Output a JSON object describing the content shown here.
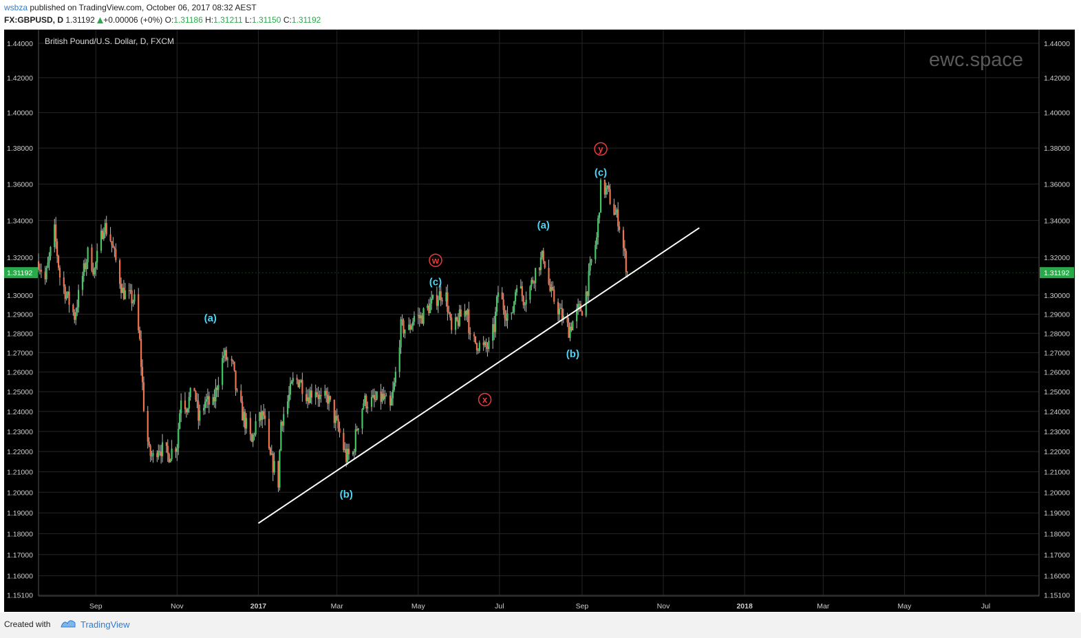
{
  "header": {
    "publisher": "wsbza",
    "published_text": "published on TradingView.com, October 06, 2017 08:32 AEST",
    "symbol": "FX:GBPUSD, D",
    "last": "1.31192",
    "change": "+0.00006 (+0%)",
    "open_label": "O:",
    "open": "1.31186",
    "high_label": "H:",
    "high": "1.31211",
    "low_label": "L:",
    "low": "1.31150",
    "close_label": "C:",
    "close": "1.31192"
  },
  "footer": {
    "created_with": "Created with",
    "brand": "TradingView"
  },
  "colors": {
    "up": "#44c767",
    "down": "#f0734e",
    "background": "#000000",
    "grid": "#262626",
    "wave_cyan": "#4fd3f5",
    "wave_red": "#ee3b3b",
    "trendline": "#ffffff",
    "price_badge": "#2aa94a"
  },
  "chart_data": {
    "type": "candlestick",
    "title": "British Pound/U.S. Dollar, D, FXCM",
    "watermark": "ewc.space",
    "scale": "log",
    "y_ticks": [
      1.44,
      1.42,
      1.4,
      1.38,
      1.36,
      1.34,
      1.32,
      1.3,
      1.29,
      1.28,
      1.27,
      1.26,
      1.25,
      1.24,
      1.23,
      1.22,
      1.21,
      1.2,
      1.19,
      1.18,
      1.17,
      1.16,
      1.151
    ],
    "y_tick_labels": [
      "1.44000",
      "1.42000",
      "1.40000",
      "1.38000",
      "1.36000",
      "1.34000",
      "1.32000",
      "1.30000",
      "1.29000",
      "1.28000",
      "1.27000",
      "1.26000",
      "1.25000",
      "1.24000",
      "1.23000",
      "1.22000",
      "1.21000",
      "1.20000",
      "1.19000",
      "1.18000",
      "1.17000",
      "1.16000",
      "1.15100"
    ],
    "ylim": [
      1.1505,
      1.448
    ],
    "x_start": "2016-07-20",
    "x_end": "2018-08-10",
    "x_ticks": [
      {
        "date": "2016-09-01",
        "label": "Sep",
        "bold": false
      },
      {
        "date": "2016-11-01",
        "label": "Nov",
        "bold": false
      },
      {
        "date": "2017-01-01",
        "label": "2017",
        "bold": true
      },
      {
        "date": "2017-03-01",
        "label": "Mar",
        "bold": false
      },
      {
        "date": "2017-05-01",
        "label": "May",
        "bold": false
      },
      {
        "date": "2017-07-01",
        "label": "Jul",
        "bold": false
      },
      {
        "date": "2017-09-01",
        "label": "Sep",
        "bold": false
      },
      {
        "date": "2017-11-01",
        "label": "Nov",
        "bold": false
      },
      {
        "date": "2018-01-01",
        "label": "2018",
        "bold": true
      },
      {
        "date": "2018-03-01",
        "label": "Mar",
        "bold": false
      },
      {
        "date": "2018-05-01",
        "label": "May",
        "bold": false
      },
      {
        "date": "2018-07-01",
        "label": "Jul",
        "bold": false
      }
    ],
    "last_price": 1.31192,
    "last_price_label": "1.31192",
    "price_path": [
      [
        "2016-07-20",
        1.318
      ],
      [
        "2016-07-25",
        1.308
      ],
      [
        "2016-08-01",
        1.334
      ],
      [
        "2016-08-05",
        1.31
      ],
      [
        "2016-08-10",
        1.3
      ],
      [
        "2016-08-16",
        1.289
      ],
      [
        "2016-08-22",
        1.31
      ],
      [
        "2016-08-26",
        1.322
      ],
      [
        "2016-08-31",
        1.313
      ],
      [
        "2016-09-07",
        1.338
      ],
      [
        "2016-09-12",
        1.33
      ],
      [
        "2016-09-16",
        1.318
      ],
      [
        "2016-09-21",
        1.302
      ],
      [
        "2016-09-26",
        1.299
      ],
      [
        "2016-09-30",
        1.297
      ],
      [
        "2016-10-04",
        1.275
      ],
      [
        "2016-10-07",
        1.243
      ],
      [
        "2016-10-11",
        1.219
      ],
      [
        "2016-10-14",
        1.217
      ],
      [
        "2016-10-18",
        1.223
      ],
      [
        "2016-10-25",
        1.218
      ],
      [
        "2016-11-01",
        1.224
      ],
      [
        "2016-11-04",
        1.248
      ],
      [
        "2016-11-08",
        1.243
      ],
      [
        "2016-11-14",
        1.252
      ],
      [
        "2016-11-17",
        1.236
      ],
      [
        "2016-11-22",
        1.245
      ],
      [
        "2016-11-28",
        1.243
      ],
      [
        "2016-12-02",
        1.257
      ],
      [
        "2016-12-06",
        1.269
      ],
      [
        "2016-12-09",
        1.266
      ],
      [
        "2016-12-13",
        1.262
      ],
      [
        "2016-12-16",
        1.247
      ],
      [
        "2016-12-21",
        1.237
      ],
      [
        "2016-12-27",
        1.224
      ],
      [
        "2016-12-30",
        1.234
      ],
      [
        "2017-01-05",
        1.238
      ],
      [
        "2017-01-09",
        1.218
      ],
      [
        "2017-01-13",
        1.212
      ],
      [
        "2017-01-16",
        1.205
      ],
      [
        "2017-01-18",
        1.235
      ],
      [
        "2017-01-23",
        1.245
      ],
      [
        "2017-01-27",
        1.255
      ],
      [
        "2017-02-01",
        1.256
      ],
      [
        "2017-02-07",
        1.248
      ],
      [
        "2017-02-13",
        1.252
      ],
      [
        "2017-02-17",
        1.245
      ],
      [
        "2017-02-22",
        1.247
      ],
      [
        "2017-02-28",
        1.235
      ],
      [
        "2017-03-03",
        1.229
      ],
      [
        "2017-03-08",
        1.217
      ],
      [
        "2017-03-13",
        1.219
      ],
      [
        "2017-03-16",
        1.232
      ],
      [
        "2017-03-21",
        1.245
      ],
      [
        "2017-03-24",
        1.245
      ],
      [
        "2017-03-29",
        1.245
      ],
      [
        "2017-04-04",
        1.247
      ],
      [
        "2017-04-10",
        1.241
      ],
      [
        "2017-04-13",
        1.253
      ],
      [
        "2017-04-18",
        1.283
      ],
      [
        "2017-04-24",
        1.282
      ],
      [
        "2017-04-28",
        1.289
      ],
      [
        "2017-05-03",
        1.288
      ],
      [
        "2017-05-08",
        1.293
      ],
      [
        "2017-05-12",
        1.296
      ],
      [
        "2017-05-18",
        1.301
      ],
      [
        "2017-05-22",
        1.299
      ],
      [
        "2017-05-26",
        1.28
      ],
      [
        "2017-06-01",
        1.288
      ],
      [
        "2017-06-07",
        1.293
      ],
      [
        "2017-06-09",
        1.276
      ],
      [
        "2017-06-14",
        1.275
      ],
      [
        "2017-06-19",
        1.272
      ],
      [
        "2017-06-23",
        1.273
      ],
      [
        "2017-06-27",
        1.283
      ],
      [
        "2017-06-30",
        1.302
      ],
      [
        "2017-07-05",
        1.292
      ],
      [
        "2017-07-10",
        1.287
      ],
      [
        "2017-07-14",
        1.308
      ],
      [
        "2017-07-19",
        1.298
      ],
      [
        "2017-07-24",
        1.304
      ],
      [
        "2017-07-28",
        1.313
      ],
      [
        "2017-08-03",
        1.321
      ],
      [
        "2017-08-08",
        1.302
      ],
      [
        "2017-08-14",
        1.293
      ],
      [
        "2017-08-18",
        1.287
      ],
      [
        "2017-08-22",
        1.282
      ],
      [
        "2017-08-25",
        1.286
      ],
      [
        "2017-08-29",
        1.292
      ],
      [
        "2017-09-01",
        1.293
      ],
      [
        "2017-09-05",
        1.304
      ],
      [
        "2017-09-08",
        1.318
      ],
      [
        "2017-09-12",
        1.33
      ],
      [
        "2017-09-15",
        1.358
      ],
      [
        "2017-09-20",
        1.356
      ],
      [
        "2017-09-25",
        1.345
      ],
      [
        "2017-09-28",
        1.341
      ],
      [
        "2017-10-02",
        1.325
      ],
      [
        "2017-10-05",
        1.31192
      ]
    ],
    "trendline": {
      "start": [
        "2017-01-01",
        1.185
      ],
      "end": [
        "2017-11-28",
        1.336
      ]
    },
    "annotations": [
      {
        "label": "(a)",
        "date": "2016-11-26",
        "price": 1.288,
        "color": "cyan",
        "circle": false
      },
      {
        "label": "(b)",
        "date": "2017-03-08",
        "price": 1.199,
        "color": "cyan",
        "circle": false
      },
      {
        "label": "(c)",
        "date": "2017-05-14",
        "price": 1.307,
        "color": "cyan",
        "circle": false
      },
      {
        "label": "w",
        "date": "2017-05-14",
        "price": 1.3185,
        "color": "red",
        "circle": true
      },
      {
        "label": "x",
        "date": "2017-06-20",
        "price": 1.246,
        "color": "red",
        "circle": true
      },
      {
        "label": "(a)",
        "date": "2017-08-03",
        "price": 1.3375,
        "color": "cyan",
        "circle": false
      },
      {
        "label": "(b)",
        "date": "2017-08-25",
        "price": 1.2695,
        "color": "cyan",
        "circle": false
      },
      {
        "label": "(c)",
        "date": "2017-09-15",
        "price": 1.3665,
        "color": "cyan",
        "circle": false
      },
      {
        "label": "y",
        "date": "2017-09-15",
        "price": 1.3795,
        "color": "red",
        "circle": true
      }
    ]
  }
}
